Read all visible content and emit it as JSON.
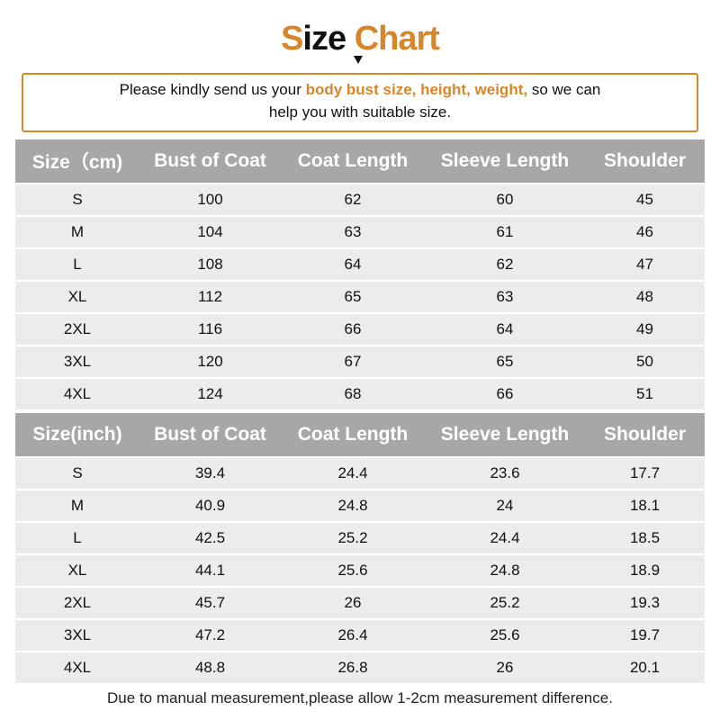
{
  "title": {
    "part1_accent": "S",
    "part1_rest": "ize",
    "part2": "Chart"
  },
  "notice": {
    "before": "Please kindly send us your ",
    "highlight": "body bust size, height, weight,",
    "after": " so we can",
    "line2": "help you with suitable size."
  },
  "cm_table": {
    "headers": [
      "Size（cm)",
      "Bust of Coat",
      "Coat Length",
      "Sleeve Length",
      "Shoulder"
    ],
    "rows": [
      [
        "S",
        "100",
        "62",
        "60",
        "45"
      ],
      [
        "M",
        "104",
        "63",
        "61",
        "46"
      ],
      [
        "L",
        "108",
        "64",
        "62",
        "47"
      ],
      [
        "XL",
        "112",
        "65",
        "63",
        "48"
      ],
      [
        "2XL",
        "116",
        "66",
        "64",
        "49"
      ],
      [
        "3XL",
        "120",
        "67",
        "65",
        "50"
      ],
      [
        "4XL",
        "124",
        "68",
        "66",
        "51"
      ]
    ]
  },
  "inch_table": {
    "headers": [
      "Size(inch)",
      "Bust of Coat",
      "Coat Length",
      "Sleeve Length",
      "Shoulder"
    ],
    "rows": [
      [
        "S",
        "39.4",
        "24.4",
        "23.6",
        "17.7"
      ],
      [
        "M",
        "40.9",
        "24.8",
        "24",
        "18.1"
      ],
      [
        "L",
        "42.5",
        "25.2",
        "24.4",
        "18.5"
      ],
      [
        "XL",
        "44.1",
        "25.6",
        "24.8",
        "18.9"
      ],
      [
        "2XL",
        "45.7",
        "26",
        "25.2",
        "19.3"
      ],
      [
        "3XL",
        "47.2",
        "26.4",
        "25.6",
        "19.7"
      ],
      [
        "4XL",
        "48.8",
        "26.8",
        "26",
        "20.1"
      ]
    ]
  },
  "footer": "Due to manual measurement,please allow 1-2cm measurement difference.",
  "colors": {
    "accent": "#d7862a",
    "header_bg": "#a9a6a6",
    "row_bg": "#ececec"
  }
}
